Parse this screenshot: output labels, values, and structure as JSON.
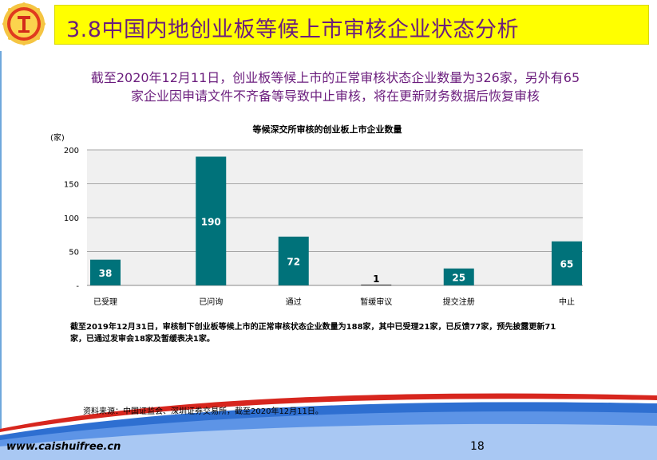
{
  "slide": {
    "title": "3.8中国内地创业板等候上市审核企业状态分析",
    "subtitle_line1": "截至2020年12月11日，创业板等候上市的正常审核状态企业数量为326家，另外有65",
    "subtitle_line2": "家企业因申请文件不齐备等导致中止审核，将在更新财务数据后恢复审核",
    "note_line1": "截至2019年12月31日，审核制下创业板等候上市的正常审核状态企业数量为188家，其中已受理21家，已反馈77家，预先披露更新71",
    "note_line2": "家，已通过发审会18家及暂缓表决1家。",
    "source": "资料来源：中国证监会、深圳证券交易所，截至2020年12月11日。",
    "footer_url": "www.caishuifree.cn",
    "page_number": "18"
  },
  "colors": {
    "title_bar": "#ffff00",
    "title_text": "#6b1d7d",
    "bar": "#00727a",
    "plot_bg": "#f0f0f0",
    "footer_red": "#d7261e",
    "footer_blue": "#2e6fd1"
  },
  "chart_data": {
    "type": "bar",
    "title": "等候深交所审核的创业板上市企业数量",
    "ylabel": "(家)",
    "ylim": [
      0,
      200
    ],
    "yticks": [
      {
        "value": 200,
        "label": "200"
      },
      {
        "value": 150,
        "label": "150"
      },
      {
        "value": 100,
        "label": "100"
      },
      {
        "value": 50,
        "label": "50"
      },
      {
        "value": 0,
        "label": "-"
      }
    ],
    "categories": [
      "已受理",
      "已问询",
      "通过",
      "暂缓审议",
      "提交注册",
      "中止"
    ],
    "values": [
      38,
      190,
      72,
      1,
      25,
      65
    ],
    "data_labels": [
      "38",
      "190",
      "72",
      "1",
      "25",
      "65"
    ],
    "grid": true
  }
}
